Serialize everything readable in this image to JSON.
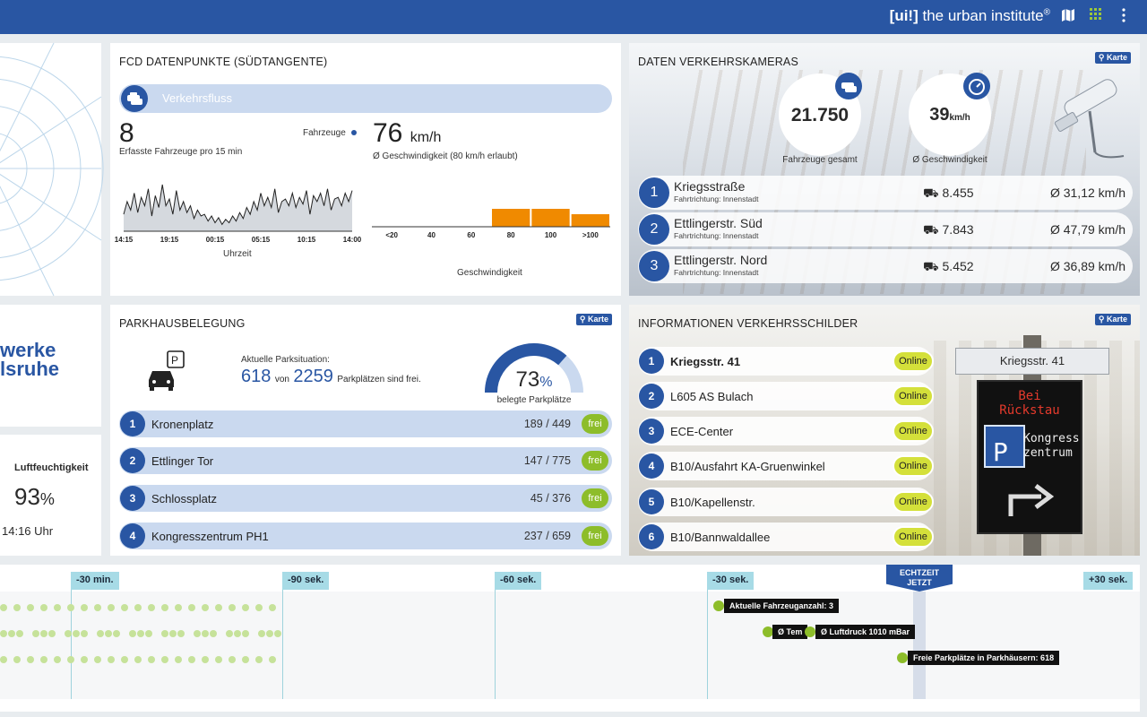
{
  "header": {
    "brand_bracket": "[ui!]",
    "brand_text": " the urban institute",
    "brand_reg": "®",
    "icons": [
      "map-icon",
      "grid-icon",
      "more-vertical-icon"
    ]
  },
  "colors": {
    "primary": "#2956a3",
    "orange": "#f08a00",
    "green": "#8dbd2a",
    "online": "#d4e03a",
    "light_blue": "#cad9ef"
  },
  "weather": {
    "humidity_label": "Luftfeuchtigkeit",
    "humidity_value": "93",
    "humidity_unit": "%",
    "time": "14:16 Uhr"
  },
  "stadtwerke": {
    "line1": "werke",
    "line2": "lsruhe"
  },
  "fcd": {
    "title": "FCD DATENPUNKTE (SÜDTANGENTE)",
    "flow_label": "Verkehrsfluss",
    "vehicles_value": "8",
    "vehicles_label": "Erfasste Fahrzeuge pro 15 min",
    "legend_label": "Fahrzeuge",
    "speed_value": "76",
    "speed_unit": "km/h",
    "speed_label": "Ø Geschwindigkeit (80 km/h erlaubt)",
    "time_axis_label": "Uhrzeit",
    "speed_axis_label": "Geschwindigkeit"
  },
  "chart_data": [
    {
      "type": "area",
      "title": "",
      "xlabel": "Uhrzeit",
      "ylabel": "",
      "x_ticks": [
        "14:15",
        "19:15",
        "00:15",
        "05:15",
        "10:15",
        "14:00"
      ],
      "values": [
        20,
        35,
        25,
        45,
        22,
        40,
        30,
        50,
        18,
        42,
        28,
        55,
        30,
        38,
        20,
        48,
        25,
        35,
        22,
        30,
        15,
        25,
        18,
        20,
        12,
        18,
        10,
        16,
        8,
        14,
        10,
        18,
        12,
        22,
        15,
        28,
        20,
        35,
        25,
        45,
        30,
        40,
        28,
        50,
        22,
        35,
        38,
        30,
        45,
        28,
        40,
        32,
        48,
        20,
        42,
        35,
        45,
        30,
        50,
        25,
        38,
        40,
        30,
        45,
        35,
        48
      ],
      "grid": false
    },
    {
      "type": "bar",
      "title": "",
      "xlabel": "Geschwindigkeit",
      "ylabel": "",
      "categories": [
        "<20",
        "40",
        "60",
        "80",
        "100",
        ">100"
      ],
      "values": [
        0,
        0,
        0,
        100,
        100,
        70
      ],
      "ylim": [
        0,
        100
      ],
      "grid": false
    }
  ],
  "cameras": {
    "title": "DATEN VERKEHRSKAMERAS",
    "karte": "Karte",
    "total_value": "21.750",
    "total_label": "Fahrzeuge gesamt",
    "speed_value": "39",
    "speed_unit": "km/h",
    "speed_label": "Ø Geschwindigkeit",
    "rows": [
      {
        "num": "1",
        "name": "Kriegsstraße",
        "sub": "Fahrtrichtung: Innenstadt",
        "count": "8.455",
        "speed": "Ø 31,12 km/h"
      },
      {
        "num": "2",
        "name": "Ettlingerstr. Süd",
        "sub": "Fahrtrichtung: Innenstadt",
        "count": "7.843",
        "speed": "Ø 47,79 km/h"
      },
      {
        "num": "3",
        "name": "Ettlingerstr. Nord",
        "sub": "Fahrtrichtung: Innenstadt",
        "count": "5.452",
        "speed": "Ø 36,89 km/h"
      }
    ]
  },
  "parking": {
    "title": "PARKHAUSBELEGUNG",
    "karte": "Karte",
    "situation_label": "Aktuelle Parksituation:",
    "free": "618",
    "von": "von",
    "total": "2259",
    "suffix": "Parkplätzen sind frei.",
    "occupancy_value": "73",
    "occupancy_unit": "%",
    "occupancy_fraction": 0.73,
    "occupancy_label": "belegte Parkplätze",
    "rows": [
      {
        "num": "1",
        "name": "Kronenplatz",
        "count": "189 / 449",
        "status": "frei"
      },
      {
        "num": "2",
        "name": "Ettlinger Tor",
        "count": "147 / 775",
        "status": "frei"
      },
      {
        "num": "3",
        "name": "Schlossplatz",
        "count": "45 / 376",
        "status": "frei"
      },
      {
        "num": "4",
        "name": "Kongresszentrum PH1",
        "count": "237 / 659",
        "status": "frei"
      }
    ]
  },
  "signs": {
    "title": "INFORMATIONEN VERKEHRSSCHILDER",
    "karte": "Karte",
    "rows": [
      {
        "num": "1",
        "name": "Kriegsstr. 41",
        "status": "Online"
      },
      {
        "num": "2",
        "name": "L605 AS Bulach",
        "status": "Online"
      },
      {
        "num": "3",
        "name": "ECE-Center",
        "status": "Online"
      },
      {
        "num": "4",
        "name": "B10/Ausfahrt KA-Gruenwinkel",
        "status": "Online"
      },
      {
        "num": "5",
        "name": "B10/Kapellenstr.",
        "status": "Online"
      },
      {
        "num": "6",
        "name": "B10/Bannwaldallee",
        "status": "Online"
      }
    ],
    "selected_sign": "Kriegsstr. 41",
    "led_line1": "Bei",
    "led_line2": "Rückstau",
    "led_line3": "Kongress",
    "led_line4": "zentrum",
    "led_p": "P"
  },
  "timeline": {
    "tags": [
      "-30 min.",
      "-90 sek.",
      "-60 sek.",
      "-30 sek.",
      "+30 sek."
    ],
    "now_line1": "ECHTZEIT",
    "now_line2": "JETZT",
    "events": [
      "Aktuelle Fahrzeuganzahl: 3",
      "Ø Tem",
      "Ø Luftdruck 1010 mBar",
      "Freie Parkplätze in Parkhäusern: 618"
    ]
  }
}
